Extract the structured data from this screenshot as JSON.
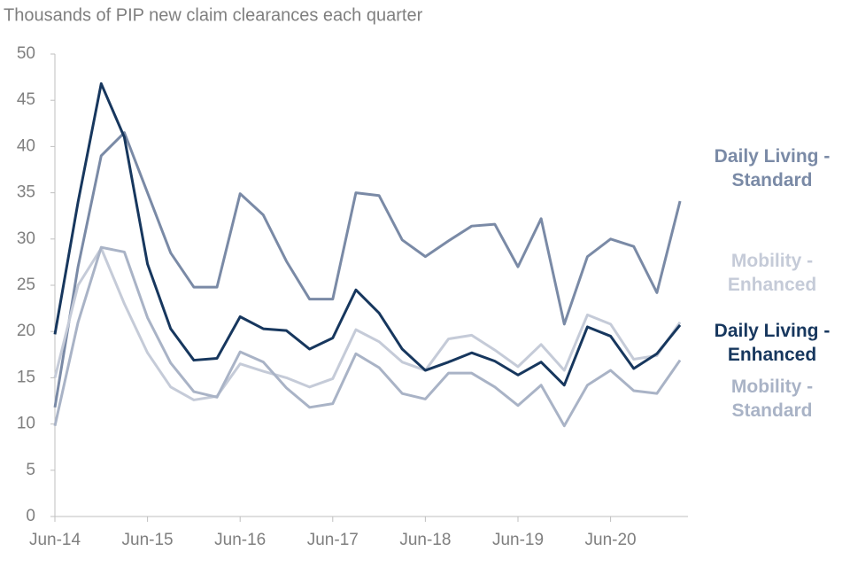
{
  "chart_data": {
    "type": "line",
    "title": "Thousands of PIP new claim clearances each quarter",
    "categories": [
      "Jun-14",
      null,
      null,
      null,
      "Jun-15",
      null,
      null,
      null,
      "Jun-16",
      null,
      null,
      null,
      "Jun-17",
      null,
      null,
      null,
      "Jun-18",
      null,
      null,
      null,
      "Jun-19",
      null,
      null,
      null,
      "Jun-20",
      null,
      null,
      null
    ],
    "ylim": [
      0,
      50
    ],
    "yticks": [
      0,
      5,
      10,
      15,
      20,
      25,
      30,
      35,
      40,
      45,
      50
    ],
    "grid": false,
    "series": [
      {
        "name": "Daily Living - Standard",
        "color": "#7a8aa6",
        "values": [
          11.8,
          27,
          39,
          41.5,
          35,
          28.5,
          24.8,
          24.8,
          34.9,
          32.6,
          27.6,
          23.5,
          23.5,
          35,
          34.7,
          29.9,
          28.1,
          29.8,
          31.4,
          31.6,
          27,
          32.2,
          20.8,
          28.1,
          30,
          29.2,
          24.2,
          34.1
        ]
      },
      {
        "name": "Mobility - Enhanced",
        "color": "#c5cbd8",
        "values": [
          15,
          25,
          29,
          23,
          17.7,
          14,
          12.6,
          13,
          16.5,
          15.7,
          15,
          14,
          14.9,
          20.2,
          18.9,
          16.7,
          15.8,
          19.2,
          19.6,
          18,
          16.2,
          18.6,
          15.8,
          21.8,
          20.8,
          17,
          17.4,
          21
        ]
      },
      {
        "name": "Daily Living - Enhanced",
        "color": "#17375e",
        "values": [
          19.7,
          34,
          46.8,
          41,
          27.3,
          20.3,
          16.9,
          17.1,
          21.6,
          20.3,
          20.1,
          18.1,
          19.3,
          24.5,
          22,
          18.1,
          15.8,
          16.7,
          17.7,
          16.8,
          15.3,
          16.7,
          14.2,
          20.5,
          19.5,
          16,
          17.6,
          20.7
        ]
      },
      {
        "name": "Mobility - Standard",
        "color": "#a9b3c6",
        "values": [
          9.8,
          21,
          29.1,
          28.6,
          21.5,
          16.6,
          13.5,
          12.9,
          17.8,
          16.7,
          13.9,
          11.8,
          12.2,
          17.6,
          16.1,
          13.3,
          12.7,
          15.5,
          15.5,
          14,
          12,
          14.2,
          9.8,
          14.2,
          15.8,
          13.6,
          13.3,
          16.9
        ]
      }
    ]
  }
}
